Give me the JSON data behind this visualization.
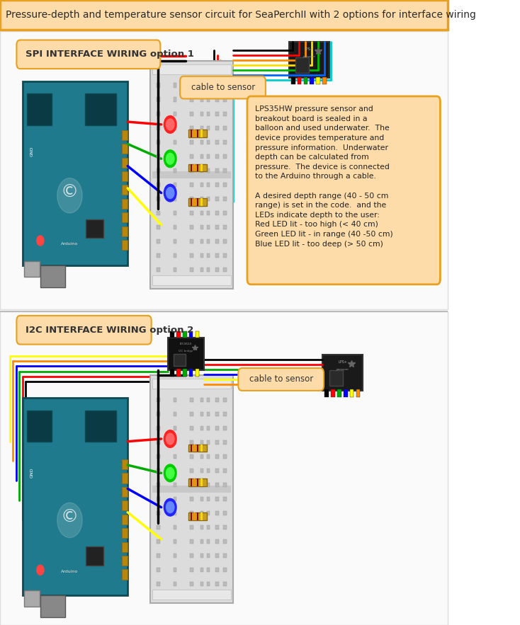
{
  "title": "Pressure-depth and temperature sensor circuit for SeaPerchII with 2 options for interface wiring",
  "title_bg": "#FDDCAA",
  "title_border": "#E8A020",
  "overall_bg": "#FFFFFF",
  "section1_label": "SPI INTERFACE WIRING option 1",
  "section1_label_bg": "#FDDCAA",
  "section1_label_border": "#E8A020",
  "section2_label": "I2C INTERFACE WIRING option 2",
  "section2_label_bg": "#FDDCAA",
  "section2_label_border": "#E8A020",
  "cable_label1": "cable to sensor",
  "cable_label2": "cable to sensor",
  "info_box_text": "LPS35HW pressure sensor and\nbreakout board is sealed in a\nballoon and used underwater.  The\ndevice provides temperature and\npressure information.  Underwater\ndepth can be calculated from\npressure.  The device is connected\nto the Arduino through a cable.\n\nA desired depth range (40 - 50 cm\nrange) is set in the code.  and the\nLEDs indicate depth to the user:\nRed LED lit - too high (< 40 cm)\nGreen LED lit - in range (40 -50 cm)\nBlue LED lit - too deep (> 50 cm)",
  "info_box_bg": "#FDDCAA",
  "info_box_border": "#E8A020",
  "resistor_band_offsets": [
    0.005,
    0.012,
    0.019,
    0.028
  ],
  "resistor_band_colors": [
    "#8B0000",
    "#FF8C00",
    "#8B0000",
    "#FFD700"
  ],
  "arduino_color": "#1E7A8C",
  "breadboard_color": "#D8D8D8",
  "sensor_board_color": "#1A1A1A",
  "spi_wire_colors": [
    "#000000",
    "#FF0000",
    "#FF8C00",
    "#FFDD00",
    "#00BB00",
    "#0066FF",
    "#00CCCC"
  ],
  "i2c_wire_colors": [
    "#000000",
    "#FF0000",
    "#00AA00",
    "#0000FF",
    "#FFFF00",
    "#FF8C00"
  ],
  "led_colors_outer": [
    "#FF2222",
    "#00CC00",
    "#2222FF"
  ],
  "led_colors_inner": [
    "#FF6666",
    "#44FF44",
    "#6688FF"
  ],
  "title_font_size": 10,
  "label_font_size": 9.5
}
